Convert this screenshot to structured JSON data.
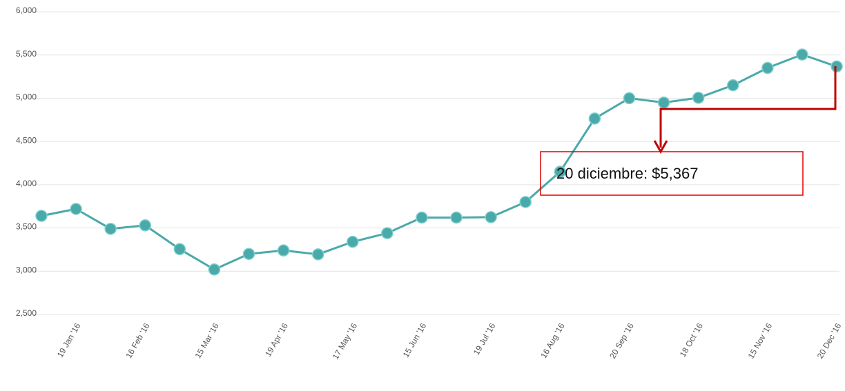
{
  "chart_data": {
    "type": "line",
    "categories": [
      null,
      "19 Jan '16",
      null,
      "16 Feb '16",
      null,
      "15 Mar '16",
      null,
      "19 Apr '16",
      null,
      "17 May '16",
      null,
      "15 Jun '16",
      null,
      "19 Jul '16",
      null,
      "16 Aug '16",
      null,
      "20 Sep '16",
      null,
      "18 Oct '16",
      null,
      "15 Nov '16",
      null,
      "20 Dec '16"
    ],
    "values": [
      3640,
      3720,
      3490,
      3530,
      3255,
      3020,
      3200,
      3240,
      3195,
      3340,
      3440,
      3620,
      3620,
      3625,
      3800,
      4150,
      4765,
      5000,
      4950,
      5005,
      5150,
      5350,
      5505,
      5367
    ],
    "color": "#4aa9a9",
    "ylim": [
      2500,
      6000
    ],
    "yticks": [
      {
        "value": 2500,
        "label": "2,500"
      },
      {
        "value": 3000,
        "label": "3,000"
      },
      {
        "value": 3500,
        "label": "3,500"
      },
      {
        "value": 4000,
        "label": "4,000"
      },
      {
        "value": 4500,
        "label": "4,500"
      },
      {
        "value": 5000,
        "label": "5,000"
      },
      {
        "value": 5500,
        "label": "5,500"
      },
      {
        "value": 6000,
        "label": "6,000"
      }
    ],
    "grid": true,
    "annotation": "20 diciembre: $5,367"
  }
}
